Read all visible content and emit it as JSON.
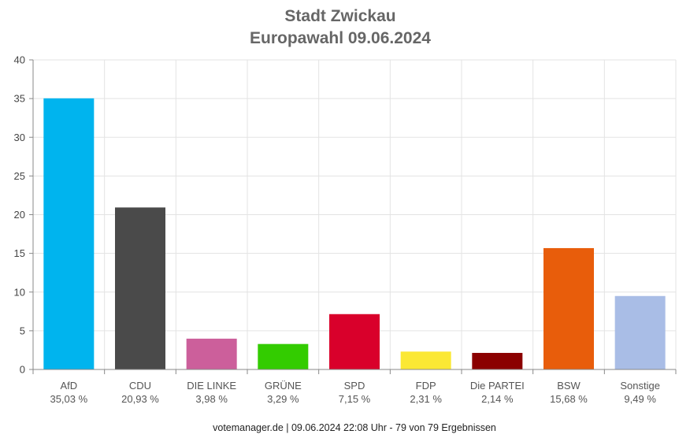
{
  "chart_data": {
    "type": "bar",
    "title": "Stadt Zwickau",
    "subtitle": "Europawahl 09.06.2024",
    "categories": [
      "AfD",
      "CDU",
      "DIE LINKE",
      "GRÜNE",
      "SPD",
      "FDP",
      "Die PARTEI",
      "BSW",
      "Sonstige"
    ],
    "values": [
      35.03,
      20.93,
      3.98,
      3.29,
      7.15,
      2.31,
      2.14,
      15.68,
      9.49
    ],
    "value_labels": [
      "35,03 %",
      "20,93 %",
      "3,98 %",
      "3,29 %",
      "7,15 %",
      "2,31 %",
      "2,14 %",
      "15,68 %",
      "9,49 %"
    ],
    "colors": [
      "#00b4ee",
      "#4a4a4a",
      "#cc5f9b",
      "#33cc00",
      "#d9002b",
      "#fbe834",
      "#8b0000",
      "#e85d0b",
      "#a9bde6"
    ],
    "ylim": [
      0,
      40
    ],
    "yticks": [
      0,
      5,
      10,
      15,
      20,
      25,
      30,
      35,
      40
    ],
    "grid": true,
    "xlabel": "",
    "ylabel": ""
  },
  "footer": "votemanager.de | 09.06.2024 22:08 Uhr - 79 von 79 Ergebnissen"
}
